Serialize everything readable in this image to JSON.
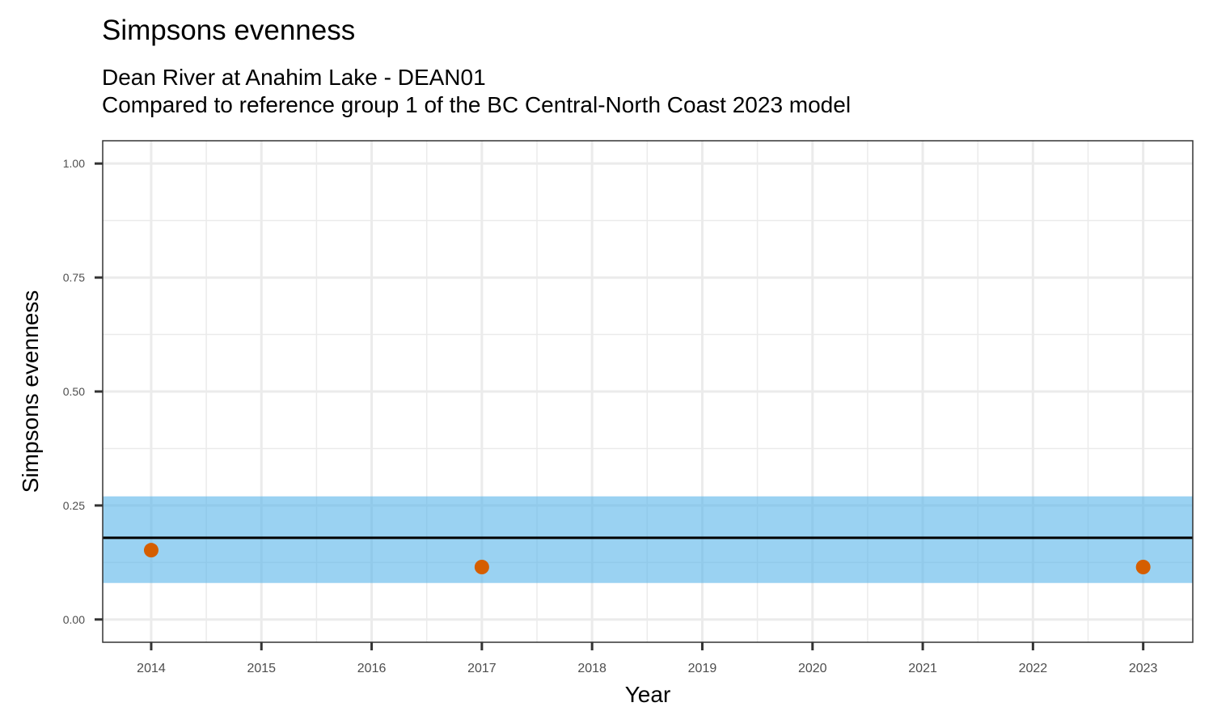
{
  "chart_data": {
    "type": "scatter",
    "title": "Simpsons evenness",
    "subtitle_lines": [
      "Dean River at Anahim Lake - DEAN01",
      "Compared to reference group 1 of the BC Central-North Coast 2023 model"
    ],
    "xlabel": "Year",
    "ylabel": "Simpsons evenness",
    "xlim": [
      2013.56,
      2023.45
    ],
    "ylim": [
      -0.05,
      1.05
    ],
    "x_ticks": [
      2014,
      2015,
      2016,
      2017,
      2018,
      2019,
      2020,
      2021,
      2022,
      2023
    ],
    "x_tick_labels": [
      "2014",
      "2015",
      "2016",
      "2017",
      "2018",
      "2019",
      "2020",
      "2021",
      "2022",
      "2023"
    ],
    "y_ticks": [
      0,
      0.25,
      0.5,
      0.75,
      1.0
    ],
    "y_tick_labels": [
      "0.00",
      "0.25",
      "0.50",
      "0.75",
      "1.00"
    ],
    "grid": true,
    "reference_band": {
      "lower": 0.08,
      "upper": 0.27,
      "color": "#56B4E9"
    },
    "reference_line": {
      "value": 0.179,
      "color": "#000000"
    },
    "series": [
      {
        "name": "Simpsons evenness",
        "color": "#D55E00",
        "x": [
          2014,
          2017,
          2023
        ],
        "y": [
          0.152,
          0.115,
          0.115
        ]
      }
    ]
  }
}
